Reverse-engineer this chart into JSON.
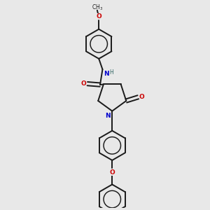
{
  "background_color": "#e8e8e8",
  "bond_color": "#1a1a1a",
  "N_color": "#0000cc",
  "O_color": "#cc0000",
  "figsize": [
    3.0,
    3.0
  ],
  "dpi": 100,
  "lw": 1.4,
  "fs": 6.5,
  "r_hex": 0.72,
  "xlim": [
    0,
    10
  ],
  "ylim": [
    0,
    10
  ]
}
